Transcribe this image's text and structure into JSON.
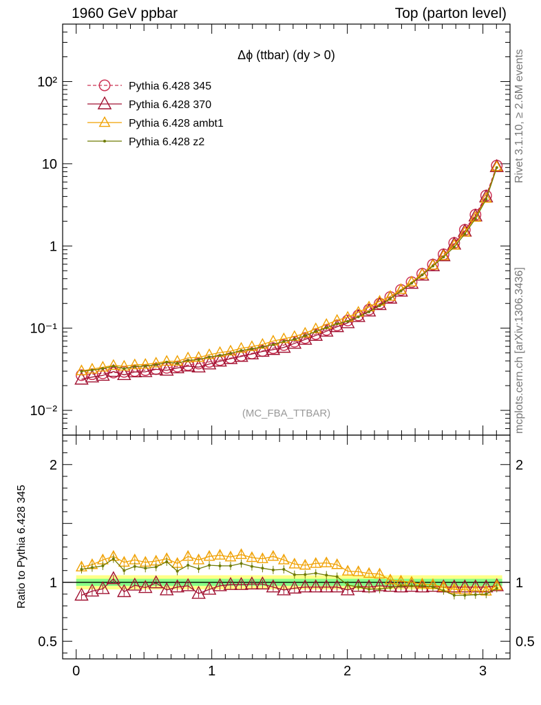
{
  "header": {
    "left": "1960 GeV ppbar",
    "right": "Top (parton level)"
  },
  "side": {
    "rivet": "Rivet 3.1.10, ≥ 2.6M events",
    "mcplots": "mcplots.cern.ch [arXiv:1306.3436]"
  },
  "chart_data": [
    {
      "type": "line",
      "title": "Δϕ (ttbar) (dy > 0)",
      "analysis_label": "(MC_FBA_TTBAR)",
      "xlim": [
        -0.1,
        3.2
      ],
      "ylim": [
        0.005,
        500
      ],
      "yscale": "log",
      "y_tick_labels": [
        "10⁻²",
        "10⁻¹",
        "1",
        "10",
        "10²"
      ],
      "x": [
        0.0393,
        0.1178,
        0.1963,
        0.2749,
        0.3534,
        0.432,
        0.5105,
        0.589,
        0.6676,
        0.7461,
        0.8247,
        0.9032,
        0.9817,
        1.0603,
        1.1388,
        1.2174,
        1.2959,
        1.3744,
        1.453,
        1.5315,
        1.6101,
        1.6886,
        1.7671,
        1.8457,
        1.9242,
        2.0028,
        2.0813,
        2.1598,
        2.2384,
        2.3169,
        2.3955,
        2.474,
        2.5525,
        2.6311,
        2.7096,
        2.7882,
        2.8667,
        2.9452,
        3.0238,
        3.1023
      ],
      "series": [
        {
          "name": "Pythia 6.428 345",
          "color": "#cc3355",
          "dash": true,
          "marker": "circle",
          "values": [
            0.0268,
            0.0275,
            0.0282,
            0.0288,
            0.0294,
            0.0301,
            0.0309,
            0.0318,
            0.0329,
            0.0341,
            0.0355,
            0.0371,
            0.0389,
            0.0409,
            0.0433,
            0.0461,
            0.0492,
            0.0528,
            0.0571,
            0.0623,
            0.0685,
            0.0758,
            0.0847,
            0.0953,
            0.108,
            0.124,
            0.143,
            0.168,
            0.199,
            0.239,
            0.292,
            0.363,
            0.459,
            0.594,
            0.79,
            1.09,
            1.57,
            2.4,
            4.1,
            9.5
          ]
        },
        {
          "name": "Pythia 6.428 370",
          "color": "#a01030",
          "dash": false,
          "marker": "triangle",
          "values": [
            0.0239,
            0.0254,
            0.0266,
            0.0297,
            0.0271,
            0.0293,
            0.0295,
            0.0316,
            0.0307,
            0.0328,
            0.0345,
            0.0336,
            0.0366,
            0.0396,
            0.0425,
            0.0452,
            0.0485,
            0.0521,
            0.0549,
            0.0583,
            0.0652,
            0.0729,
            0.0814,
            0.0916,
            0.104,
            0.116,
            0.138,
            0.161,
            0.193,
            0.231,
            0.281,
            0.35,
            0.44,
            0.573,
            0.758,
            1.048,
            1.51,
            2.31,
            3.94,
            9.2
          ]
        },
        {
          "name": "Pythia 6.428 ambt1",
          "color": "#f0a000",
          "dash": false,
          "marker": "triangle-open",
          "values": [
            0.0303,
            0.0317,
            0.0335,
            0.0352,
            0.0344,
            0.0358,
            0.0362,
            0.0376,
            0.0395,
            0.0396,
            0.0434,
            0.044,
            0.0475,
            0.0505,
            0.0526,
            0.0569,
            0.0596,
            0.0635,
            0.0696,
            0.0742,
            0.0792,
            0.0868,
            0.0983,
            0.1108,
            0.1244,
            0.1357,
            0.1562,
            0.1807,
            0.2127,
            0.2437,
            0.2949,
            0.3637,
            0.451,
            0.5831,
            0.7586,
            1.0242,
            1.4674,
            2.2272,
            3.797,
            9.2
          ]
        },
        {
          "name": "Pythia 6.428 z2",
          "color": "#6e7a00",
          "dash": false,
          "marker": "dot",
          "values": [
            0.0298,
            0.0309,
            0.0322,
            0.0345,
            0.0322,
            0.0341,
            0.0346,
            0.0359,
            0.0386,
            0.0374,
            0.0406,
            0.0414,
            0.0446,
            0.0466,
            0.0493,
            0.0535,
            0.0559,
            0.0591,
            0.0631,
            0.069,
            0.073,
            0.0808,
            0.0912,
            0.1011,
            0.1132,
            0.1211,
            0.1373,
            0.1582,
            0.1875,
            0.2284,
            0.2832,
            0.3521,
            0.4452,
            0.5702,
            0.7347,
            0.9701,
            1.3974,
            2.1456,
            3.69,
            9.0
          ]
        }
      ]
    },
    {
      "type": "line",
      "ylabel": "Ratio to Pythia 6.428 345",
      "xlim": [
        -0.1,
        3.2
      ],
      "ylim": [
        0.35,
        2.25
      ],
      "x_tick_labels": [
        "0",
        "1",
        "2",
        "3"
      ],
      "y_tick_labels": [
        "0.5",
        "1",
        "2"
      ],
      "band": {
        "green": [
          0.97,
          1.03
        ],
        "yellow": [
          0.94,
          1.06
        ]
      },
      "series": [
        {
          "name": "Pythia 6.428 370",
          "color": "#a01030",
          "marker": "triangle",
          "values": [
            0.89,
            0.925,
            0.945,
            1.03,
            0.92,
            0.975,
            0.955,
            0.995,
            0.935,
            0.96,
            0.97,
            0.905,
            0.94,
            0.97,
            0.98,
            0.98,
            0.985,
            0.985,
            0.96,
            0.935,
            0.95,
            0.96,
            0.96,
            0.96,
            0.96,
            0.935,
            0.965,
            0.96,
            0.97,
            0.965,
            0.96,
            0.965,
            0.96,
            0.965,
            0.96,
            0.96,
            0.96,
            0.96,
            0.96,
            0.97
          ]
        },
        {
          "name": "Pythia 6.428 ambt1",
          "color": "#f0a000",
          "marker": "triangle-open",
          "values": [
            1.13,
            1.15,
            1.19,
            1.22,
            1.17,
            1.19,
            1.17,
            1.18,
            1.2,
            1.16,
            1.22,
            1.19,
            1.22,
            1.23,
            1.215,
            1.235,
            1.21,
            1.2,
            1.22,
            1.19,
            1.155,
            1.145,
            1.16,
            1.165,
            1.15,
            1.095,
            1.09,
            1.075,
            1.07,
            1.02,
            1.01,
            1.0,
            0.985,
            0.98,
            0.96,
            0.94,
            0.935,
            0.93,
            0.925,
            0.97
          ]
        },
        {
          "name": "Pythia 6.428 z2",
          "color": "#6e7a00",
          "marker": "dot",
          "values": [
            1.11,
            1.125,
            1.14,
            1.2,
            1.1,
            1.135,
            1.12,
            1.13,
            1.175,
            1.095,
            1.145,
            1.115,
            1.145,
            1.14,
            1.14,
            1.16,
            1.135,
            1.12,
            1.105,
            1.11,
            1.065,
            1.066,
            1.077,
            1.061,
            1.048,
            0.977,
            0.96,
            0.942,
            0.942,
            0.955,
            0.97,
            0.97,
            0.97,
            0.96,
            0.93,
            0.89,
            0.89,
            0.895,
            0.9,
            0.95
          ]
        }
      ]
    }
  ]
}
